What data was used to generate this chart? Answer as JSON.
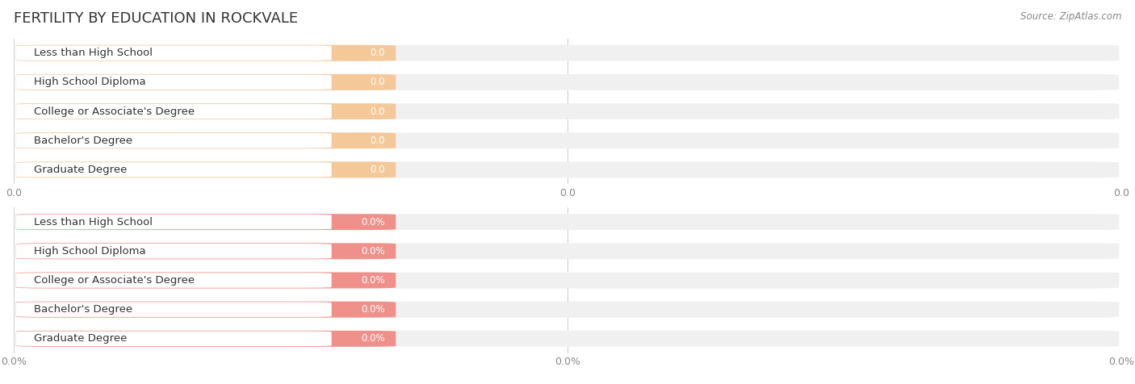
{
  "title": "FERTILITY BY EDUCATION IN ROCKVALE",
  "source": "Source: ZipAtlas.com",
  "background_color": "#ffffff",
  "top_section": {
    "categories": [
      "Less than High School",
      "High School Diploma",
      "College or Associate's Degree",
      "Bachelor's Degree",
      "Graduate Degree"
    ],
    "values": [
      0.0,
      0.0,
      0.0,
      0.0,
      0.0
    ],
    "bar_color": "#f5c89a",
    "bar_bg_color": "#f0f0f0",
    "value_labels": [
      "0.0",
      "0.0",
      "0.0",
      "0.0",
      "0.0"
    ],
    "tick_labels": [
      "0.0",
      "0.0",
      "0.0"
    ]
  },
  "bottom_section": {
    "categories": [
      "Less than High School",
      "High School Diploma",
      "College or Associate's Degree",
      "Bachelor's Degree",
      "Graduate Degree"
    ],
    "values": [
      0.0,
      0.0,
      0.0,
      0.0,
      0.0
    ],
    "bar_color": "#f0908a",
    "bar_bg_color": "#f0f0f0",
    "value_labels": [
      "0.0%",
      "0.0%",
      "0.0%",
      "0.0%",
      "0.0%"
    ],
    "tick_labels": [
      "0.0%",
      "0.0%",
      "0.0%"
    ]
  },
  "title_fontsize": 13,
  "label_fontsize": 9.5,
  "value_fontsize": 8.5,
  "tick_fontsize": 9,
  "source_fontsize": 8.5,
  "title_color": "#333333",
  "label_color": "#333333",
  "value_label_color": "#ffffff",
  "tick_color": "#888888",
  "source_color": "#888888"
}
